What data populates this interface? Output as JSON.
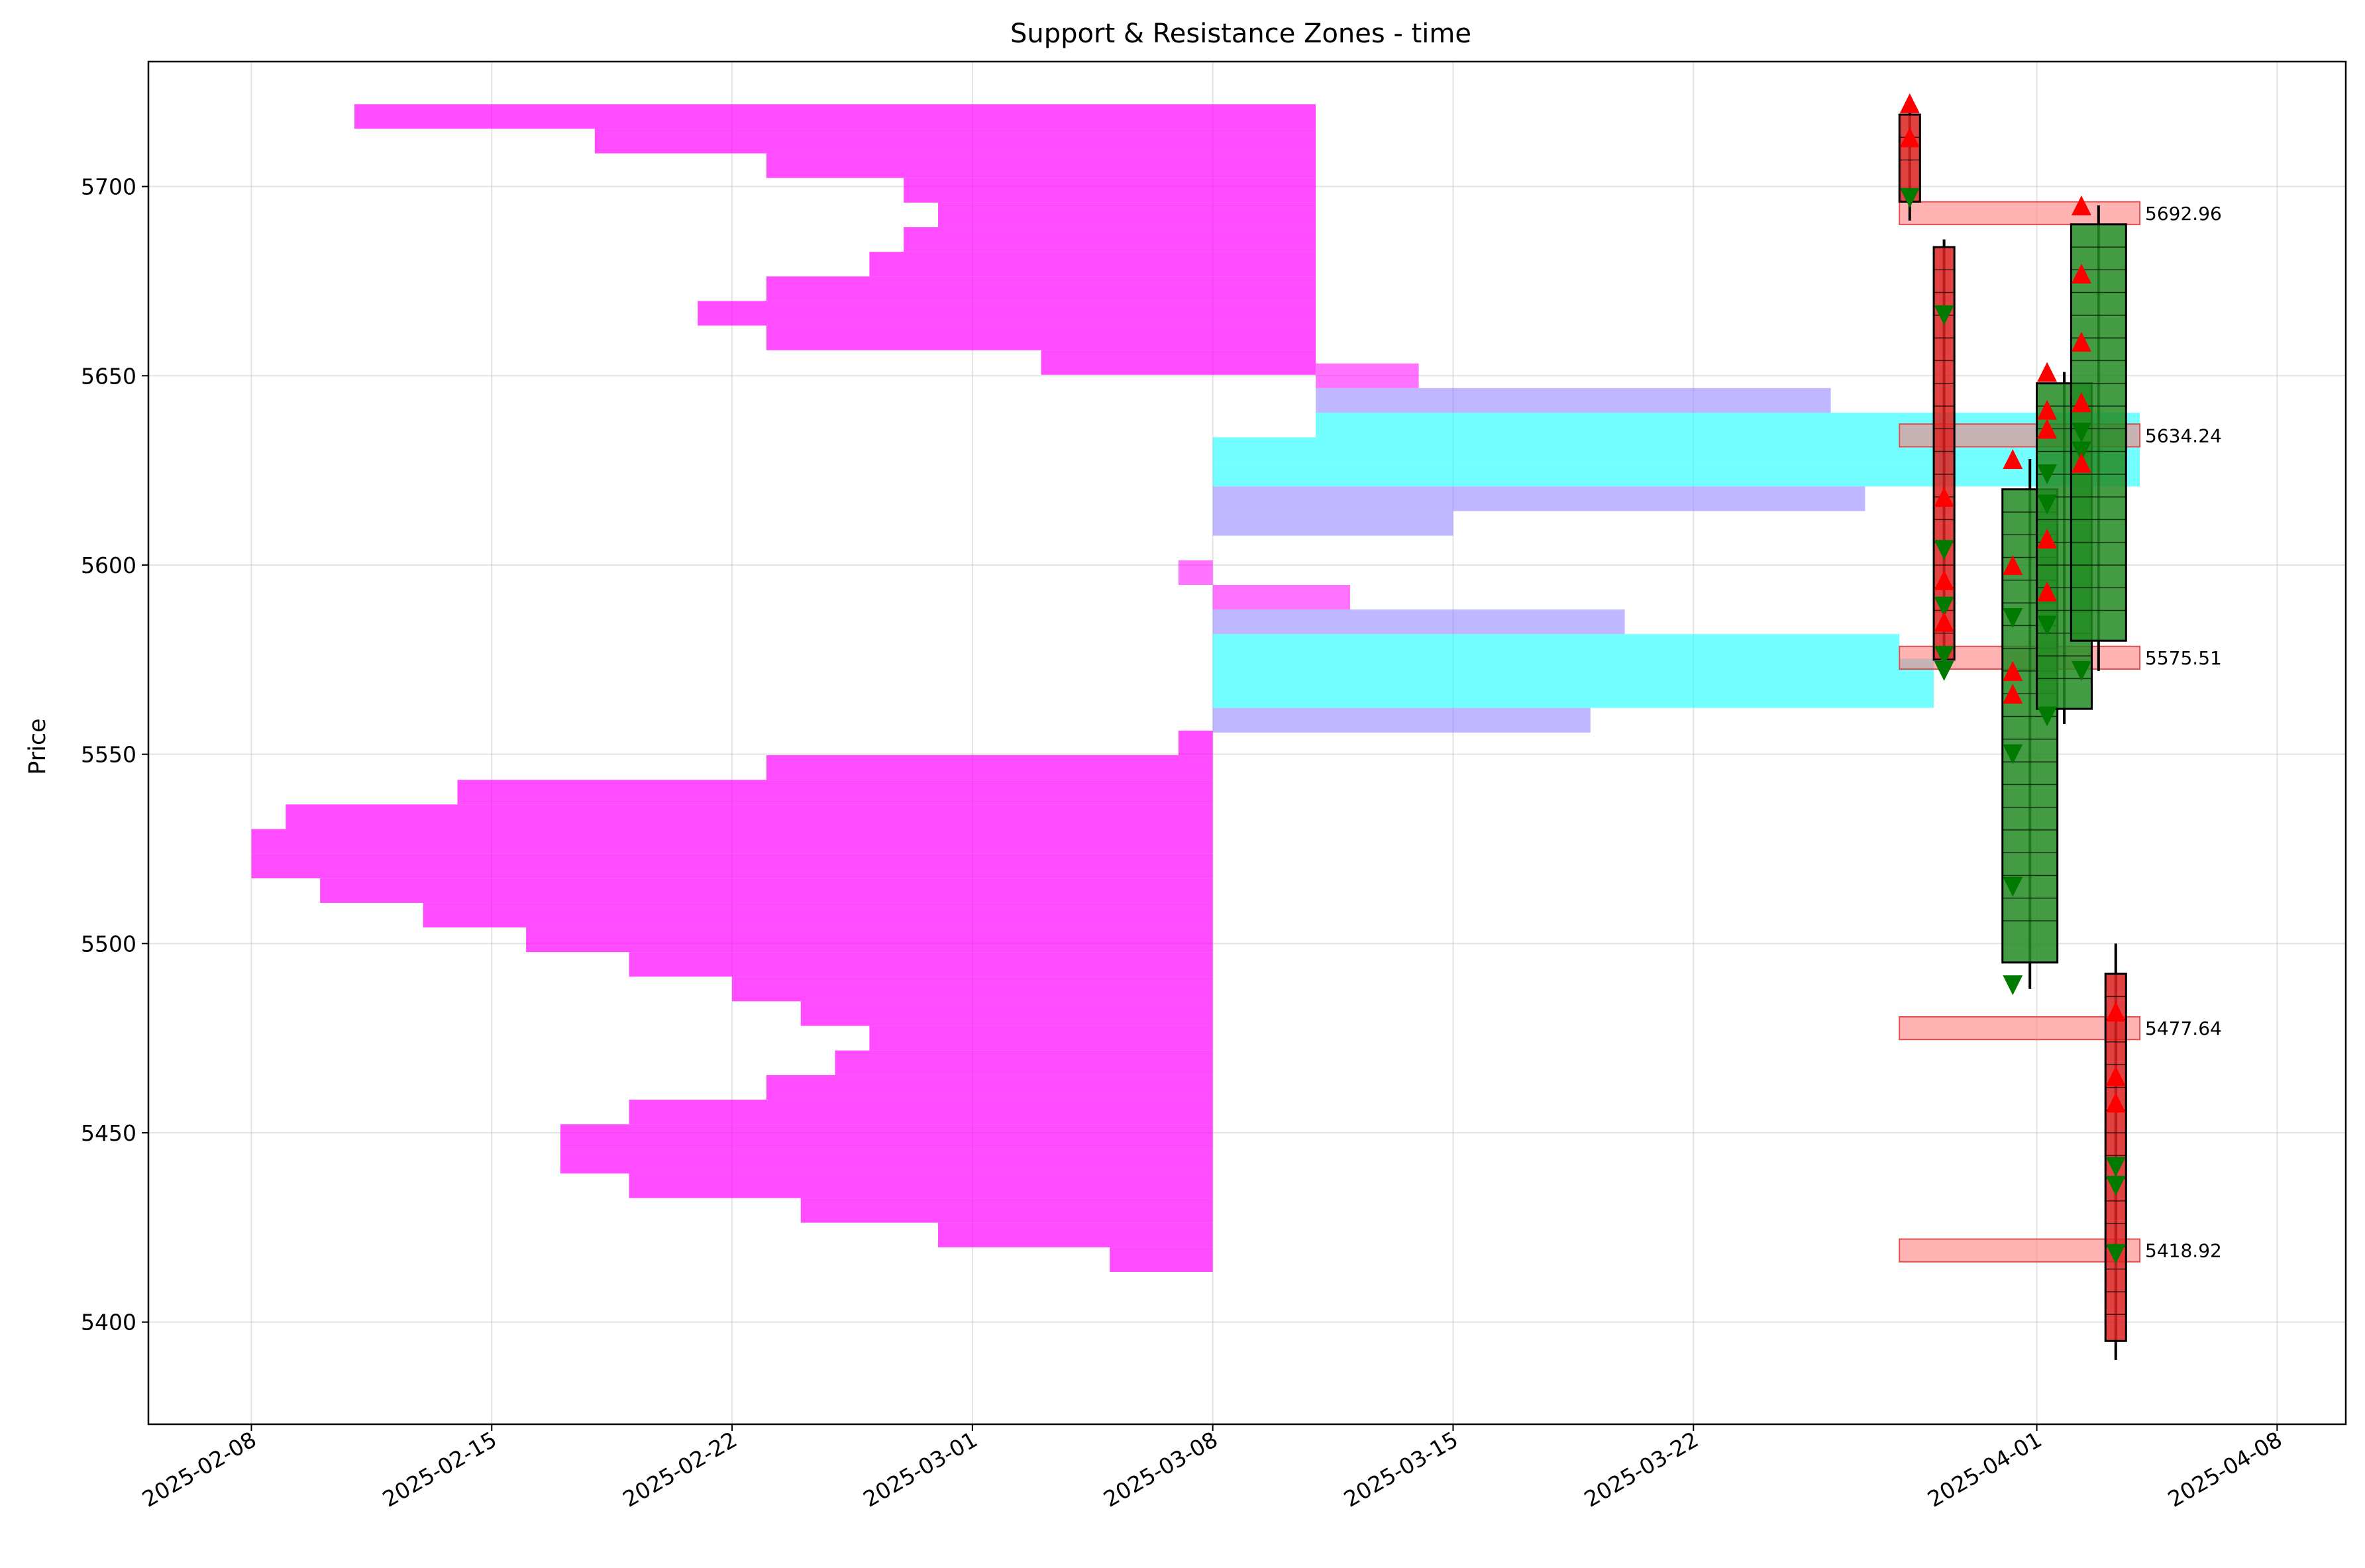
{
  "chart_data": {
    "type": "candlestick",
    "title": "Support & Resistance Zones - time",
    "xlabel": "",
    "ylabel": "Price",
    "x_start": "2025-02-05",
    "x_end": "2025-04-10",
    "ylim": [
      5373,
      5733
    ],
    "grid": true,
    "x_ticks": [
      "2025-02-08",
      "2025-02-15",
      "2025-02-22",
      "2025-03-01",
      "2025-03-08",
      "2025-03-15",
      "2025-03-22",
      "2025-04-01",
      "2025-04-08"
    ],
    "y_ticks": [
      5400,
      5450,
      5500,
      5550,
      5600,
      5650,
      5700
    ],
    "colors": {
      "up": "#228b22",
      "down": "#dd2020",
      "upper_profile": "#ff00ff",
      "lower_profile": "#ff00ff",
      "mid_profile_a": "#8a7bff",
      "mid_profile_b": "#00ffff",
      "zone": "#ff8080",
      "buy_marker": "#ff0000",
      "sell_marker": "#007a00"
    },
    "zones": [
      {
        "price": 5692.96,
        "label": "5692.96",
        "start": "2025-03-28",
        "end": "2025-04-04"
      },
      {
        "price": 5634.24,
        "label": "5634.24",
        "start": "2025-03-28",
        "end": "2025-04-04"
      },
      {
        "price": 5575.51,
        "label": "5575.51",
        "start": "2025-03-28",
        "end": "2025-04-04"
      },
      {
        "price": 5477.64,
        "label": "5477.64",
        "start": "2025-03-28",
        "end": "2025-04-04"
      },
      {
        "price": 5418.92,
        "label": "5418.92",
        "start": "2025-03-28",
        "end": "2025-04-04"
      }
    ],
    "profile_upper": {
      "base": "2025-03-11",
      "bars": [
        {
          "price": 5718.5,
          "start": "2025-02-11"
        },
        {
          "price": 5712,
          "start": "2025-02-18"
        },
        {
          "price": 5705.5,
          "start": "2025-02-23"
        },
        {
          "price": 5699,
          "start": "2025-02-27"
        },
        {
          "price": 5692.5,
          "start": "2025-02-28"
        },
        {
          "price": 5686,
          "start": "2025-02-27"
        },
        {
          "price": 5679.5,
          "start": "2025-02-26"
        },
        {
          "price": 5673,
          "start": "2025-02-23"
        },
        {
          "price": 5666.5,
          "start": "2025-02-21"
        },
        {
          "price": 5660,
          "start": "2025-02-23"
        },
        {
          "price": 5653.5,
          "start": "2025-03-03"
        }
      ]
    },
    "profile_lower": {
      "base": "2025-03-08",
      "bars": [
        {
          "price": 5553,
          "start": "2025-03-07"
        },
        {
          "price": 5546.5,
          "start": "2025-02-23"
        },
        {
          "price": 5540,
          "start": "2025-02-14"
        },
        {
          "price": 5533.5,
          "start": "2025-02-09"
        },
        {
          "price": 5527,
          "start": "2025-02-08"
        },
        {
          "price": 5520.5,
          "start": "2025-02-08"
        },
        {
          "price": 5514,
          "start": "2025-02-10"
        },
        {
          "price": 5507.5,
          "start": "2025-02-13"
        },
        {
          "price": 5501,
          "start": "2025-02-16"
        },
        {
          "price": 5494.5,
          "start": "2025-02-19"
        },
        {
          "price": 5488,
          "start": "2025-02-22"
        },
        {
          "price": 5481.5,
          "start": "2025-02-24"
        },
        {
          "price": 5475,
          "start": "2025-02-26"
        },
        {
          "price": 5468.5,
          "start": "2025-02-25"
        },
        {
          "price": 5462,
          "start": "2025-02-23"
        },
        {
          "price": 5455.5,
          "start": "2025-02-19"
        },
        {
          "price": 5449,
          "start": "2025-02-17"
        },
        {
          "price": 5442.5,
          "start": "2025-02-17"
        },
        {
          "price": 5436,
          "start": "2025-02-19"
        },
        {
          "price": 5429.5,
          "start": "2025-02-24"
        },
        {
          "price": 5423,
          "start": "2025-02-28"
        },
        {
          "price": 5416.5,
          "start": "2025-03-05"
        }
      ]
    },
    "profile_mid": [
      {
        "price": 5650,
        "start": "2025-03-11",
        "end": "2025-03-14",
        "color": "upper_profile"
      },
      {
        "price": 5643.5,
        "start": "2025-03-11",
        "end": "2025-03-26",
        "color": "mid_profile_a"
      },
      {
        "price": 5637,
        "start": "2025-03-11",
        "end": "2025-04-04",
        "color": "mid_profile_b"
      },
      {
        "price": 5630.5,
        "start": "2025-03-08",
        "end": "2025-04-04",
        "color": "mid_profile_b"
      },
      {
        "price": 5624,
        "start": "2025-03-08",
        "end": "2025-04-04",
        "color": "mid_profile_b"
      },
      {
        "price": 5617.5,
        "start": "2025-03-08",
        "end": "2025-03-27",
        "color": "mid_profile_a"
      },
      {
        "price": 5611,
        "start": "2025-03-08",
        "end": "2025-03-15",
        "color": "mid_profile_a"
      },
      {
        "price": 5598,
        "start": "2025-03-07",
        "end": "2025-03-08",
        "color": "upper_profile"
      },
      {
        "price": 5591.5,
        "start": "2025-03-08",
        "end": "2025-03-12",
        "color": "upper_profile"
      },
      {
        "price": 5585,
        "start": "2025-03-08",
        "end": "2025-03-20",
        "color": "mid_profile_a"
      },
      {
        "price": 5578.5,
        "start": "2025-03-08",
        "end": "2025-03-28",
        "color": "mid_profile_b"
      },
      {
        "price": 5572,
        "start": "2025-03-08",
        "end": "2025-03-29",
        "color": "mid_profile_b"
      },
      {
        "price": 5565.5,
        "start": "2025-03-08",
        "end": "2025-03-29",
        "color": "mid_profile_b"
      },
      {
        "price": 5559,
        "start": "2025-03-08",
        "end": "2025-03-19",
        "color": "mid_profile_a"
      }
    ],
    "candle_groups": [
      {
        "name": "group-1",
        "x_start": "2025-03-28",
        "x_end": "2025-03-28",
        "high": 5722,
        "low": 5691,
        "body_top": 5719,
        "body_bottom": 5696,
        "direction": "down"
      },
      {
        "name": "group-2",
        "x_start": "2025-03-29",
        "x_end": "2025-03-29",
        "high": 5686,
        "low": 5572,
        "body_top": 5684,
        "body_bottom": 5575,
        "direction": "down"
      },
      {
        "name": "group-3",
        "x_start": "2025-03-31",
        "x_end": "2025-04-01",
        "high": 5628,
        "low": 5488,
        "body_top": 5620,
        "body_bottom": 5495,
        "direction": "up"
      },
      {
        "name": "group-4",
        "x_start": "2025-04-01",
        "x_end": "2025-04-02",
        "high": 5651,
        "low": 5558,
        "body_top": 5648,
        "body_bottom": 5562,
        "direction": "up"
      },
      {
        "name": "group-5",
        "x_start": "2025-04-02",
        "x_end": "2025-04-03",
        "high": 5695,
        "low": 5572,
        "body_top": 5690,
        "body_bottom": 5580,
        "direction": "up"
      },
      {
        "name": "group-6",
        "x_start": "2025-04-03",
        "x_end": "2025-04-03",
        "high": 5500,
        "low": 5390,
        "body_top": 5492,
        "body_bottom": 5395,
        "direction": "down"
      }
    ],
    "markers": [
      {
        "type": "buy",
        "date": "2025-03-28",
        "price": 5722
      },
      {
        "type": "buy",
        "date": "2025-03-28",
        "price": 5713
      },
      {
        "type": "sell",
        "date": "2025-03-28",
        "price": 5697
      },
      {
        "type": "sell",
        "date": "2025-03-29",
        "price": 5666
      },
      {
        "type": "buy",
        "date": "2025-03-29",
        "price": 5618
      },
      {
        "type": "sell",
        "date": "2025-03-29",
        "price": 5604
      },
      {
        "type": "buy",
        "date": "2025-03-29",
        "price": 5596
      },
      {
        "type": "sell",
        "date": "2025-03-29",
        "price": 5589
      },
      {
        "type": "buy",
        "date": "2025-03-29",
        "price": 5585
      },
      {
        "type": "sell",
        "date": "2025-03-29",
        "price": 5576
      },
      {
        "type": "sell",
        "date": "2025-03-29",
        "price": 5572
      },
      {
        "type": "buy",
        "date": "2025-03-31",
        "price": 5628
      },
      {
        "type": "buy",
        "date": "2025-03-31",
        "price": 5600
      },
      {
        "type": "sell",
        "date": "2025-03-31",
        "price": 5586
      },
      {
        "type": "buy",
        "date": "2025-03-31",
        "price": 5572
      },
      {
        "type": "buy",
        "date": "2025-03-31",
        "price": 5566
      },
      {
        "type": "sell",
        "date": "2025-03-31",
        "price": 5550
      },
      {
        "type": "sell",
        "date": "2025-03-31",
        "price": 5515
      },
      {
        "type": "sell",
        "date": "2025-03-31",
        "price": 5489
      },
      {
        "type": "buy",
        "date": "2025-04-01",
        "price": 5651
      },
      {
        "type": "buy",
        "date": "2025-04-01",
        "price": 5641
      },
      {
        "type": "buy",
        "date": "2025-04-01",
        "price": 5636
      },
      {
        "type": "sell",
        "date": "2025-04-01",
        "price": 5624
      },
      {
        "type": "sell",
        "date": "2025-04-01",
        "price": 5616
      },
      {
        "type": "buy",
        "date": "2025-04-01",
        "price": 5607
      },
      {
        "type": "buy",
        "date": "2025-04-01",
        "price": 5593
      },
      {
        "type": "sell",
        "date": "2025-04-01",
        "price": 5584
      },
      {
        "type": "sell",
        "date": "2025-04-01",
        "price": 5560
      },
      {
        "type": "buy",
        "date": "2025-04-02",
        "price": 5695
      },
      {
        "type": "buy",
        "date": "2025-04-02",
        "price": 5677
      },
      {
        "type": "buy",
        "date": "2025-04-02",
        "price": 5659
      },
      {
        "type": "buy",
        "date": "2025-04-02",
        "price": 5643
      },
      {
        "type": "sell",
        "date": "2025-04-02",
        "price": 5635
      },
      {
        "type": "sell",
        "date": "2025-04-02",
        "price": 5630
      },
      {
        "type": "buy",
        "date": "2025-04-02",
        "price": 5627
      },
      {
        "type": "sell",
        "date": "2025-04-02",
        "price": 5572
      },
      {
        "type": "buy",
        "date": "2025-04-03",
        "price": 5482
      },
      {
        "type": "buy",
        "date": "2025-04-03",
        "price": 5465
      },
      {
        "type": "buy",
        "date": "2025-04-03",
        "price": 5458
      },
      {
        "type": "sell",
        "date": "2025-04-03",
        "price": 5441
      },
      {
        "type": "sell",
        "date": "2025-04-03",
        "price": 5436
      },
      {
        "type": "sell",
        "date": "2025-04-03",
        "price": 5418
      }
    ]
  }
}
